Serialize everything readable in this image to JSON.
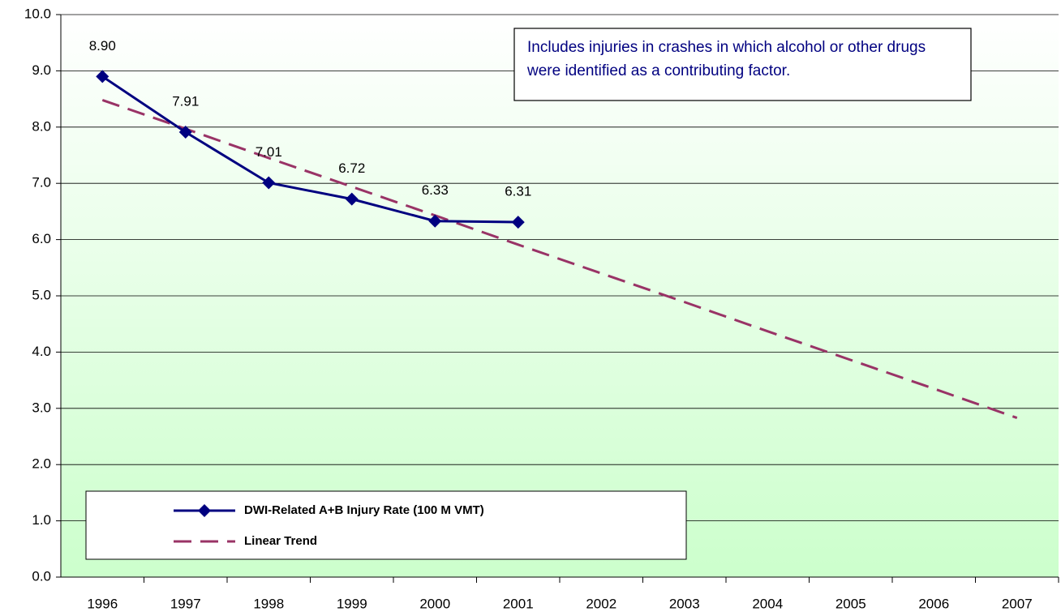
{
  "chart_data": {
    "type": "line",
    "annotation": "Includes injuries in crashes in which alcohol or other drugs were identified as a contributing factor.",
    "categories": [
      "1996",
      "1997",
      "1998",
      "1999",
      "2000",
      "2001",
      "2002",
      "2003",
      "2004",
      "2005",
      "2006",
      "2007"
    ],
    "series": [
      {
        "name": "DWI-Related A+B Injury Rate (100 M VMT)",
        "color": "#000080",
        "style": "solid",
        "markers": true,
        "values": [
          8.9,
          7.91,
          7.01,
          6.72,
          6.33,
          6.31,
          null,
          null,
          null,
          null,
          null,
          null
        ],
        "value_labels": [
          "8.90",
          "7.91",
          "7.01",
          "6.72",
          "6.33",
          "6.31",
          null,
          null,
          null,
          null,
          null,
          null
        ]
      },
      {
        "name": "Linear Trend",
        "color": "#993366",
        "style": "dashed",
        "markers": false,
        "values": [
          8.48,
          7.97,
          7.45,
          6.94,
          6.43,
          5.91,
          5.4,
          4.89,
          4.37,
          3.86,
          3.35,
          2.83
        ]
      }
    ],
    "ylim": [
      0,
      10
    ],
    "yticks": [
      {
        "value": 0,
        "label": "0.0"
      },
      {
        "value": 1,
        "label": "1.0"
      },
      {
        "value": 2,
        "label": "2.0"
      },
      {
        "value": 3,
        "label": "3.0"
      },
      {
        "value": 4,
        "label": "4.0"
      },
      {
        "value": 5,
        "label": "5.0"
      },
      {
        "value": 6,
        "label": "6.0"
      },
      {
        "value": 7,
        "label": "7.0"
      },
      {
        "value": 8,
        "label": "8.0"
      },
      {
        "value": 9,
        "label": "9.0"
      },
      {
        "value": 10,
        "label": "10.0"
      }
    ],
    "grid": true,
    "legend": "lower left"
  }
}
